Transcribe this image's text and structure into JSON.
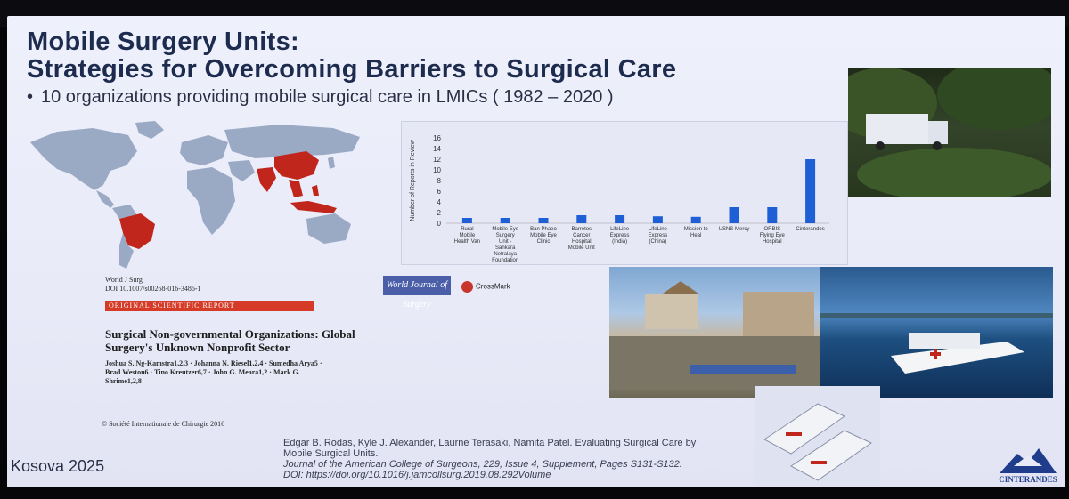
{
  "slide": {
    "title_line1": "Mobile Surgery Units:",
    "title_line2": "Strategies for Overcoming Barriers to Surgical Care",
    "bullet": "10 organizations providing mobile surgical care in LMICs ( 1982 – 2020 )",
    "footer_left": "Kosova 2025"
  },
  "paper": {
    "journal_line1": "World J Surg",
    "journal_line2": "DOI 10.1007/s00268-016-3486-1",
    "report_type": "ORIGINAL SCIENTIFIC REPORT",
    "journal_logo": "World Journal of Surgery",
    "crossmark": "CrossMark",
    "title": "Surgical Non-governmental Organizations: Global Surgery's Unknown Nonprofit Sector",
    "authors": "Joshua S. Ng-Kamstra1,2,3 · Johanna N. Riesel1,2,4 · Sumedha Arya5 · Brad Weston6 · Tino Kreutzer6,7 · John G. Meara1,2 · Mark G. Shrime1,2,8",
    "copyright": "© Société Internationale de Chirurgie 2016"
  },
  "citation": {
    "authors": "Edgar B. Rodas, Kyle J. Alexander, Laurne Terasaki, Namita Patel. Evaluating Surgical Care by Mobile Surgical Units.",
    "journal": "Journal of the American College of Surgeons, 229, Issue 4, Supplement, Pages S131-S132.",
    "doi": "DOI: https://doi.org/10.1016/j.jamcollsurg.2019.08.292Volume"
  },
  "logo": {
    "name": "CINTERANDES"
  },
  "colors": {
    "bar": "#1f5fd6",
    "map_highlight": "#c0261b",
    "title": "#1d2c4e",
    "report_bar": "#d53b27"
  },
  "chart_data": {
    "type": "bar",
    "ylabel": "Number of Reports in Review",
    "ylim": [
      0,
      16
    ],
    "yticks": [
      0,
      2,
      4,
      6,
      8,
      10,
      12,
      14,
      16
    ],
    "categories": [
      "Rural Mobile Health Van",
      "Mobile Eye Surgery Unit - Sankara Netralaya Foundation",
      "Ban Phaeo Mobile Eye Clinic",
      "Barretos Cancer Hospital Mobile Unit",
      "LifeLine Express (India)",
      "LifeLine Express (China)",
      "Mission to Heal",
      "USNS Mercy",
      "ORBIS Flying Eye Hospital",
      "Cinterandes"
    ],
    "values": [
      1,
      1,
      1,
      1.5,
      1.5,
      1.3,
      1.2,
      3,
      3,
      12
    ],
    "grid": false
  }
}
